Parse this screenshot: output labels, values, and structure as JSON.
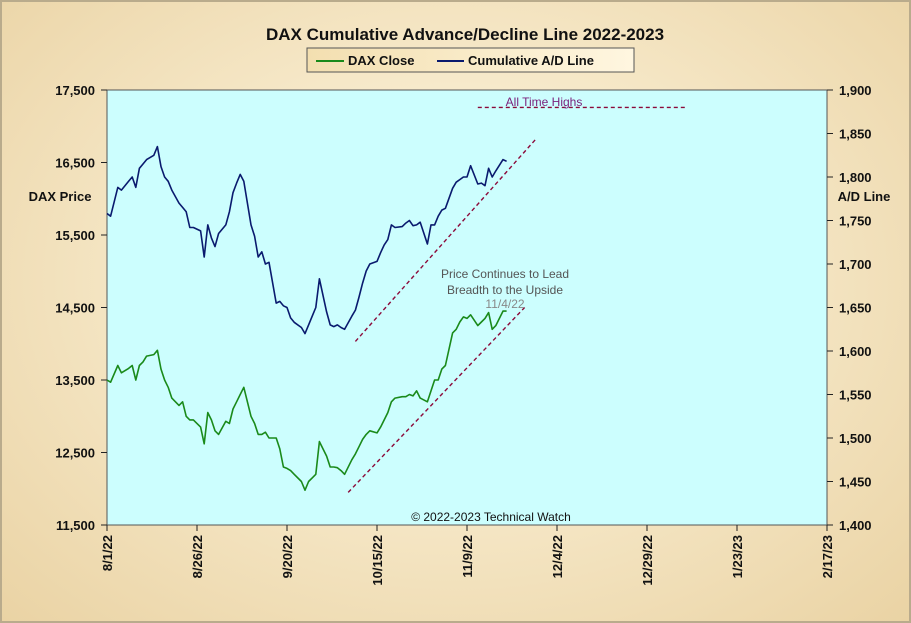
{
  "chart_data": {
    "type": "line",
    "title": "DAX Cumulative Advance/Decline Line 2022-2023",
    "ylabel_left": "DAX Price",
    "ylabel_right": "A/D Line",
    "legend": {
      "placement": "top-center",
      "entries": [
        {
          "name": "DAX Close",
          "color": "#1a8a1a"
        },
        {
          "name": "Cumulative A/D Line",
          "color": "#0a1a6e"
        }
      ]
    },
    "x_tick_labels": [
      "8/1/22",
      "8/26/22",
      "9/20/22",
      "10/15/22",
      "11/9/22",
      "12/4/22",
      "12/29/22",
      "1/23/23",
      "2/17/23"
    ],
    "x_range_days": [
      0,
      200
    ],
    "x_tick_days": [
      0,
      25,
      50,
      75,
      100,
      125,
      150,
      175,
      200
    ],
    "ylim_left": [
      11500,
      17500
    ],
    "ylim_right": [
      1400,
      1900
    ],
    "y_ticks_left": [
      "11,500",
      "12,500",
      "13,500",
      "14,500",
      "15,500",
      "16,500",
      "17,500"
    ],
    "y_ticks_left_values": [
      11500,
      12500,
      13500,
      14500,
      15500,
      16500,
      17500
    ],
    "y_ticks_right": [
      "1,400",
      "1,450",
      "1,500",
      "1,550",
      "1,600",
      "1,650",
      "1,700",
      "1,750",
      "1,800",
      "1,850",
      "1,900"
    ],
    "y_ticks_right_values": [
      1400,
      1450,
      1500,
      1550,
      1600,
      1650,
      1700,
      1750,
      1800,
      1850,
      1900
    ],
    "grid": false,
    "background_color": "#ccfefe",
    "series": [
      {
        "name": "DAX Close",
        "axis": "left",
        "color": "#1a8a1a",
        "x": [
          0,
          1,
          3,
          4,
          6,
          7,
          8,
          9,
          10,
          11,
          13,
          14,
          15,
          16,
          17,
          18,
          20,
          21,
          22,
          23,
          24,
          26,
          27,
          28,
          29,
          30,
          31,
          33,
          34,
          35,
          36,
          37,
          38,
          40,
          41,
          42,
          43,
          44,
          45,
          47,
          48,
          49,
          50,
          51,
          52,
          54,
          55,
          56,
          57,
          58,
          59,
          61,
          62,
          63,
          64,
          65,
          66,
          68,
          69,
          70,
          71,
          72,
          73,
          75,
          76,
          77,
          78,
          79,
          80,
          82,
          83,
          84,
          85,
          86,
          87,
          89,
          90,
          91,
          92,
          93,
          94,
          96,
          97,
          98,
          99,
          100,
          101,
          103,
          104,
          105,
          106,
          107,
          108,
          110,
          111
        ],
        "y": [
          13500,
          13470,
          13700,
          13600,
          13660,
          13700,
          13500,
          13700,
          13750,
          13830,
          13850,
          13910,
          13650,
          13500,
          13400,
          13250,
          13150,
          13200,
          13000,
          12950,
          12950,
          12850,
          12620,
          13050,
          12950,
          12800,
          12750,
          12930,
          12900,
          13100,
          13200,
          13300,
          13400,
          13000,
          12900,
          12750,
          12750,
          12780,
          12700,
          12700,
          12550,
          12300,
          12280,
          12250,
          12200,
          12100,
          11980,
          12100,
          12150,
          12200,
          12650,
          12450,
          12300,
          12300,
          12290,
          12250,
          12200,
          12400,
          12480,
          12580,
          12680,
          12750,
          12800,
          12770,
          12850,
          12950,
          13050,
          13200,
          13250,
          13270,
          13270,
          13300,
          13280,
          13350,
          13250,
          13200,
          13350,
          13500,
          13500,
          13650,
          13700,
          14150,
          14200,
          14300,
          14370,
          14350,
          14400,
          14250,
          14300,
          14350,
          14430,
          14200,
          14250,
          14450,
          14450
        ]
      },
      {
        "name": "Cumulative A/D Line",
        "axis": "right",
        "color": "#0a1a6e",
        "x": [
          0,
          1,
          3,
          4,
          6,
          7,
          8,
          9,
          10,
          11,
          13,
          14,
          15,
          16,
          17,
          18,
          20,
          21,
          22,
          23,
          24,
          26,
          27,
          28,
          29,
          30,
          31,
          33,
          34,
          35,
          36,
          37,
          38,
          40,
          41,
          42,
          43,
          44,
          45,
          47,
          48,
          49,
          50,
          51,
          52,
          54,
          55,
          56,
          57,
          58,
          59,
          61,
          62,
          63,
          64,
          65,
          66,
          68,
          69,
          70,
          71,
          72,
          73,
          75,
          76,
          77,
          78,
          79,
          80,
          82,
          83,
          84,
          85,
          86,
          87,
          89,
          90,
          91,
          92,
          93,
          94,
          96,
          97,
          98,
          99,
          100,
          101,
          103,
          104,
          105,
          106,
          107,
          108,
          110,
          111
        ],
        "y": [
          1758,
          1755,
          1788,
          1785,
          1795,
          1800,
          1788,
          1810,
          1815,
          1820,
          1825,
          1835,
          1812,
          1800,
          1795,
          1785,
          1770,
          1765,
          1760,
          1742,
          1742,
          1738,
          1708,
          1745,
          1730,
          1720,
          1735,
          1745,
          1760,
          1782,
          1793,
          1803,
          1795,
          1745,
          1732,
          1708,
          1714,
          1700,
          1702,
          1655,
          1657,
          1652,
          1650,
          1638,
          1633,
          1627,
          1620,
          1630,
          1640,
          1650,
          1683,
          1645,
          1630,
          1628,
          1630,
          1627,
          1625,
          1640,
          1647,
          1662,
          1678,
          1692,
          1700,
          1703,
          1713,
          1722,
          1728,
          1745,
          1742,
          1743,
          1747,
          1750,
          1744,
          1745,
          1748,
          1723,
          1745,
          1745,
          1755,
          1762,
          1764,
          1787,
          1794,
          1797,
          1800,
          1800,
          1813,
          1792,
          1793,
          1790,
          1810,
          1800,
          1807,
          1820,
          1818
        ]
      }
    ],
    "trendlines": [
      {
        "axis": "right",
        "x": [
          69,
          119
        ],
        "y": [
          1611,
          1843
        ],
        "color": "#8b0a3a",
        "style": "dashed"
      },
      {
        "axis": "left",
        "x": [
          67,
          116
        ],
        "y": [
          11950,
          14500
        ],
        "color": "#8b0a3a",
        "style": "dashed"
      },
      {
        "axis": "right",
        "x": [
          103,
          161
        ],
        "y": [
          1880,
          1880
        ],
        "color": "#8b0a3a",
        "style": "dashed"
      }
    ],
    "annotations": [
      {
        "id": "ath",
        "text": "All Time Highs",
        "color": "#7a1f7a"
      },
      {
        "id": "pc1",
        "text": "Price Continues to Lead",
        "color": "#555555"
      },
      {
        "id": "pc2",
        "text": "Breadth to the Upside",
        "color": "#555555"
      },
      {
        "id": "pc3",
        "text": "11/4/22",
        "color": "#888888"
      },
      {
        "id": "copy",
        "text": "© 2022-2023  Technical  Watch",
        "color": "#111111"
      }
    ]
  }
}
